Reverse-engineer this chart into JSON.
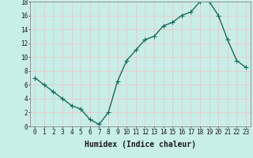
{
  "x": [
    0,
    1,
    2,
    3,
    4,
    5,
    6,
    7,
    8,
    9,
    10,
    11,
    12,
    13,
    14,
    15,
    16,
    17,
    18,
    19,
    20,
    21,
    22,
    23
  ],
  "y": [
    7,
    6,
    5,
    4,
    3,
    2.5,
    1,
    0.3,
    2,
    6.5,
    9.5,
    11,
    12.5,
    13,
    14.5,
    15,
    16,
    16.5,
    18,
    18,
    16,
    12.5,
    9.5,
    8.5
  ],
  "line_color": "#1a6b5a",
  "marker": "+",
  "marker_color": "#1a6b5a",
  "bg_color": "#c8eee8",
  "grid_color": "#e8c8c8",
  "xlabel": "Humidex (Indice chaleur)",
  "ylabel": "",
  "xlim": [
    -0.5,
    23.5
  ],
  "ylim": [
    0,
    18
  ],
  "yticks": [
    0,
    2,
    4,
    6,
    8,
    10,
    12,
    14,
    16,
    18
  ],
  "xticks": [
    0,
    1,
    2,
    3,
    4,
    5,
    6,
    7,
    8,
    9,
    10,
    11,
    12,
    13,
    14,
    15,
    16,
    17,
    18,
    19,
    20,
    21,
    22,
    23
  ],
  "xtick_labels": [
    "0",
    "1",
    "2",
    "3",
    "4",
    "5",
    "6",
    "7",
    "8",
    "9",
    "10",
    "11",
    "12",
    "13",
    "14",
    "15",
    "16",
    "17",
    "18",
    "19",
    "20",
    "21",
    "22",
    "23"
  ],
  "tick_fontsize": 5.5,
  "xlabel_fontsize": 7,
  "line_width": 1.0,
  "marker_size": 4
}
